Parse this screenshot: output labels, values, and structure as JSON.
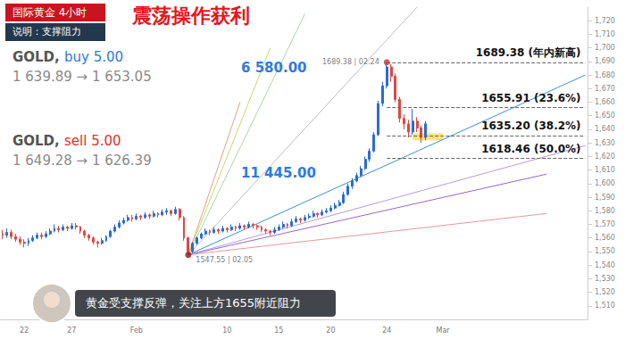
{
  "chart_data": {
    "type": "candlestick",
    "title": "国际黄金 4小时",
    "subtitle": "说明：支撑阻力",
    "headline": "震荡操作获利",
    "caption": "黄金受支撑反弹，关注上方1655附近阻力",
    "categories": [
      null,
      null,
      null,
      null,
      null,
      "22",
      null,
      null,
      null,
      null,
      null,
      null,
      null,
      null,
      null,
      null,
      "27",
      null,
      null,
      null,
      null,
      null,
      null,
      null,
      null,
      null,
      null,
      null,
      null,
      null,
      null,
      "Feb",
      null,
      null,
      null,
      null,
      null,
      null,
      null,
      null,
      null,
      null,
      null,
      null,
      null,
      null,
      null,
      null,
      null,
      null,
      null,
      null,
      "10",
      null,
      null,
      null,
      null,
      null,
      null,
      null,
      null,
      null,
      null,
      null,
      "15",
      null,
      null,
      null,
      null,
      null,
      null,
      null,
      null,
      null,
      null,
      null,
      "20",
      null,
      null,
      null,
      null,
      null,
      null,
      null,
      null,
      null,
      null,
      null,
      null,
      "24",
      null,
      null,
      null,
      null,
      null,
      null,
      null,
      null,
      null,
      null,
      null,
      null,
      "Mar",
      null,
      null,
      null,
      null,
      null,
      null,
      null,
      null,
      null,
      null,
      null,
      null,
      null,
      null,
      null,
      null,
      null,
      null,
      null,
      null,
      null,
      null,
      null,
      null,
      null,
      null,
      null,
      null,
      null,
      null,
      null,
      null,
      null
    ],
    "ohlc": [
      [
        1563,
        1562,
        1559,
        1566
      ],
      [
        1562,
        1564,
        1560,
        1567
      ],
      [
        1564,
        1561,
        1559,
        1566
      ],
      [
        1561,
        1559,
        1557,
        1563
      ],
      [
        1559,
        1557,
        1555,
        1561
      ],
      [
        1557,
        1556,
        1553,
        1559
      ],
      [
        1556,
        1558,
        1554,
        1560
      ],
      [
        1558,
        1560,
        1557,
        1562
      ],
      [
        1560,
        1562,
        1559,
        1564
      ],
      [
        1562,
        1561,
        1559,
        1564
      ],
      [
        1561,
        1563,
        1560,
        1565
      ],
      [
        1563,
        1565,
        1562,
        1567
      ],
      [
        1565,
        1567,
        1564,
        1570
      ],
      [
        1567,
        1566,
        1564,
        1569
      ],
      [
        1566,
        1568,
        1565,
        1570
      ],
      [
        1568,
        1567,
        1565,
        1569
      ],
      [
        1567,
        1569,
        1566,
        1571
      ],
      [
        1569,
        1568,
        1566,
        1571
      ],
      [
        1568,
        1565,
        1563,
        1569
      ],
      [
        1565,
        1562,
        1560,
        1566
      ],
      [
        1562,
        1560,
        1558,
        1563
      ],
      [
        1560,
        1557,
        1555,
        1561
      ],
      [
        1557,
        1556,
        1553,
        1558
      ],
      [
        1556,
        1558,
        1555,
        1560
      ],
      [
        1558,
        1561,
        1557,
        1562
      ],
      [
        1561,
        1565,
        1560,
        1566
      ],
      [
        1565,
        1568,
        1564,
        1570
      ],
      [
        1568,
        1571,
        1567,
        1573
      ],
      [
        1571,
        1573,
        1570,
        1575
      ],
      [
        1573,
        1575,
        1572,
        1577
      ],
      [
        1575,
        1574,
        1572,
        1577
      ],
      [
        1574,
        1576,
        1573,
        1578
      ],
      [
        1576,
        1575,
        1573,
        1577
      ],
      [
        1575,
        1577,
        1574,
        1579
      ],
      [
        1577,
        1576,
        1574,
        1578
      ],
      [
        1576,
        1578,
        1575,
        1580
      ],
      [
        1578,
        1577,
        1575,
        1579
      ],
      [
        1577,
        1579,
        1576,
        1581
      ],
      [
        1579,
        1580,
        1577,
        1582
      ],
      [
        1580,
        1578,
        1576,
        1581
      ],
      [
        1578,
        1581,
        1577,
        1583
      ],
      [
        1581,
        1575,
        1573,
        1582
      ],
      [
        1575,
        1560,
        1558,
        1576
      ],
      [
        1560,
        1550,
        1547.55,
        1561
      ],
      [
        1550,
        1556,
        1549,
        1557
      ],
      [
        1556,
        1560,
        1555,
        1561
      ],
      [
        1560,
        1563,
        1559,
        1564
      ],
      [
        1563,
        1565,
        1562,
        1567
      ],
      [
        1565,
        1564,
        1562,
        1566
      ],
      [
        1564,
        1566,
        1563,
        1568
      ],
      [
        1566,
        1565,
        1563,
        1567
      ],
      [
        1565,
        1567,
        1564,
        1569
      ],
      [
        1567,
        1566,
        1564,
        1568
      ],
      [
        1566,
        1568,
        1565,
        1570
      ],
      [
        1568,
        1567,
        1565,
        1569
      ],
      [
        1567,
        1569,
        1566,
        1571
      ],
      [
        1569,
        1568,
        1566,
        1570
      ],
      [
        1568,
        1570,
        1567,
        1572
      ],
      [
        1570,
        1569,
        1567,
        1571
      ],
      [
        1569,
        1568,
        1566,
        1570
      ],
      [
        1568,
        1566,
        1564,
        1569
      ],
      [
        1566,
        1565,
        1563,
        1567
      ],
      [
        1565,
        1564,
        1562,
        1566
      ],
      [
        1564,
        1566,
        1563,
        1568
      ],
      [
        1566,
        1568,
        1565,
        1570
      ],
      [
        1568,
        1570,
        1567,
        1572
      ],
      [
        1570,
        1569,
        1567,
        1571
      ],
      [
        1569,
        1572,
        1568,
        1574
      ],
      [
        1572,
        1574,
        1571,
        1576
      ],
      [
        1574,
        1573,
        1571,
        1575
      ],
      [
        1573,
        1575,
        1572,
        1577
      ],
      [
        1575,
        1576,
        1574,
        1578
      ],
      [
        1576,
        1578,
        1575,
        1580
      ],
      [
        1578,
        1577,
        1575,
        1579
      ],
      [
        1577,
        1579,
        1576,
        1581
      ],
      [
        1579,
        1580,
        1578,
        1582
      ],
      [
        1580,
        1582,
        1579,
        1584
      ],
      [
        1582,
        1584,
        1581,
        1586
      ],
      [
        1584,
        1586,
        1583,
        1588
      ],
      [
        1586,
        1592,
        1585,
        1594
      ],
      [
        1592,
        1598,
        1591,
        1600
      ],
      [
        1598,
        1602,
        1596,
        1604
      ],
      [
        1602,
        1606,
        1601,
        1608
      ],
      [
        1606,
        1611,
        1605,
        1613
      ],
      [
        1611,
        1618,
        1610,
        1620
      ],
      [
        1618,
        1624,
        1616,
        1626
      ],
      [
        1624,
        1636,
        1623,
        1638
      ],
      [
        1636,
        1659,
        1635,
        1661
      ],
      [
        1659,
        1672,
        1657,
        1675
      ],
      [
        1672,
        1686,
        1670,
        1689.38
      ],
      [
        1686,
        1679,
        1675,
        1688
      ],
      [
        1679,
        1662,
        1660,
        1681
      ],
      [
        1662,
        1648,
        1645,
        1664
      ],
      [
        1648,
        1644,
        1640,
        1651
      ],
      [
        1644,
        1638,
        1634,
        1647
      ],
      [
        1638,
        1646,
        1636,
        1655
      ],
      [
        1646,
        1641,
        1638,
        1649
      ],
      [
        1641,
        1634,
        1630,
        1643
      ],
      [
        1634,
        1644,
        1632,
        1646
      ],
      null,
      null,
      null,
      null,
      null,
      null,
      null,
      null,
      null,
      null,
      null,
      null,
      null,
      null,
      null,
      null,
      null,
      null,
      null,
      null,
      null,
      null,
      null,
      null,
      null,
      null,
      null,
      null,
      null,
      null,
      null,
      null,
      null,
      null,
      null,
      null,
      null
    ],
    "color": {
      "up": "#2a6bd8",
      "down": "#e0463f"
    },
    "ylim": [
      1500,
      1730
    ],
    "yticks": [
      1510,
      1520,
      1530,
      1540,
      1550,
      1560,
      1570,
      1580,
      1590,
      1600,
      1610,
      1620,
      1630,
      1640,
      1650,
      1660,
      1670,
      1680,
      1690,
      1700,
      1710,
      1720
    ],
    "grid": false,
    "levels": [
      {
        "value": 1689.38,
        "label": "1689.38 (年内新高)"
      },
      {
        "value": 1655.91,
        "label": "1655.91 (23.6%)"
      },
      {
        "value": 1635.2,
        "label": "1635.20 (38.2%)"
      },
      {
        "value": 1618.46,
        "label": "1618.46 (50.0%)"
      }
    ],
    "markers": [
      {
        "x": 89,
        "y": 1689.38,
        "label": "1689.38 | 02.24",
        "color": "#c0392b"
      },
      {
        "x": 43,
        "y": 1547.55,
        "label": "1547.55 | 02.05",
        "color": "#8b1a1a"
      }
    ],
    "fan": [
      {
        "color": "#bdbdbd",
        "end": [
          96,
          1730
        ]
      },
      {
        "color": "#a8d8a8",
        "end": [
          70,
          1725
        ]
      },
      {
        "color": "#c7d96b",
        "end": [
          62,
          1700
        ]
      },
      {
        "color": "#e0a080",
        "end": [
          55,
          1660
        ]
      },
      {
        "color": "#3b8fd9",
        "end": [
          135,
          1680
        ]
      },
      {
        "color": "#b49be6",
        "end": [
          135,
          1628
        ]
      },
      {
        "color": "#9466d0",
        "end": [
          126,
          1607
        ]
      },
      {
        "color": "#e59a9a",
        "end": [
          126,
          1578
        ]
      }
    ],
    "highlight": {
      "x": [
        95,
        102
      ],
      "y": [
        1632,
        1637
      ],
      "color": "#f7d54a"
    },
    "trades": [
      {
        "prefix": "GOLD, ",
        "order": "buy 5.00",
        "prices": "1 639.89 → 1 653.05",
        "profit": "6 580.00",
        "color": "#2d7be0",
        "profit_color": "#2d7be0"
      },
      {
        "prefix": "GOLD, ",
        "order": "sell 5.00",
        "prices": "1 649.28 → 1 626.39",
        "profit": "11 445.00",
        "color": "#e0302a",
        "profit_color": "#2d7be0"
      }
    ]
  }
}
